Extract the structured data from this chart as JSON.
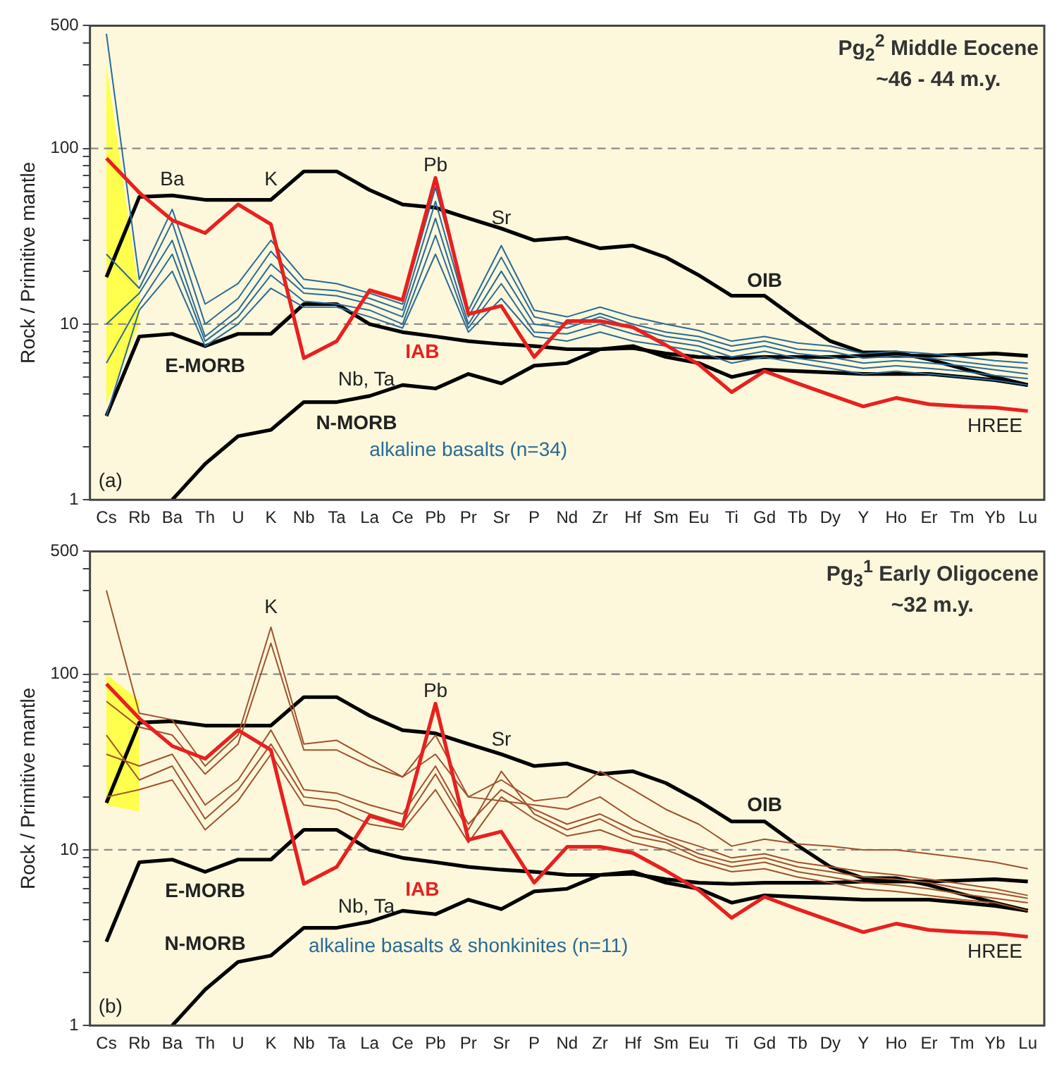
{
  "chart_data": [
    {
      "type": "line",
      "title": "Pg$_{2}$$^{2}$ Middle Eocene",
      "subtitle": "~46 - 44 m.y.",
      "ylabel": "Rock / Primitive mantle",
      "log": true,
      "marker": "none",
      "line_style": "solid",
      "categories": [
        "Cs",
        "Rb",
        "Ba",
        "Th",
        "U",
        "K",
        "Nb",
        "Ta",
        "La",
        "Ce",
        "Pb",
        "Pr",
        "Sr",
        "P",
        "Nd",
        "Zr",
        "Hf",
        "Sm",
        "Eu",
        "Ti",
        "Gd",
        "Tb",
        "Dy",
        "Y",
        "Ho",
        "Er",
        "Tm",
        "Yb",
        "Lu"
      ],
      "ylim": [
        1,
        500
      ],
      "yticks": [
        1,
        {
          "value": 2,
          "label": null
        },
        {
          "value": 3,
          "label": null
        },
        {
          "value": 4,
          "label": null
        },
        {
          "value": 5,
          "label": null
        },
        {
          "value": 6,
          "label": null
        },
        {
          "value": 7,
          "label": null
        },
        {
          "value": 8,
          "label": null
        },
        {
          "value": 9,
          "label": null
        },
        10,
        {
          "value": 20,
          "label": null
        },
        {
          "value": 30,
          "label": null
        },
        {
          "value": 40,
          "label": null
        },
        {
          "value": 50,
          "label": null
        },
        {
          "value": 60,
          "label": null
        },
        {
          "value": 70,
          "label": null
        },
        {
          "value": 80,
          "label": null
        },
        {
          "value": 90,
          "label": null
        },
        100,
        {
          "value": 200,
          "label": null
        },
        {
          "value": 300,
          "label": null
        },
        {
          "value": 400,
          "label": null
        },
        500
      ],
      "ref_lines": [
        {
          "axis": "y",
          "value": 10,
          "color": "#8c8c8c",
          "line_style": "dashed"
        },
        {
          "axis": "y",
          "value": 100,
          "color": "#8c8c8c",
          "line_style": "dashed"
        }
      ],
      "series": [
        {
          "type": "area",
          "color": "#ffff4d",
          "values": [
            null,
            null,
            null,
            null,
            null,
            null,
            null,
            null,
            null,
            null,
            null,
            null,
            null,
            null,
            null,
            null,
            null,
            null,
            null,
            null,
            null,
            null,
            null,
            null,
            null,
            null,
            null,
            null,
            null
          ],
          "lower": [
            3.5,
            10,
            null,
            null,
            null,
            null,
            null,
            null,
            null,
            null,
            null,
            null,
            null,
            null,
            null,
            null,
            null,
            null,
            null,
            null,
            null,
            null,
            null,
            null,
            null,
            null,
            null,
            null,
            null
          ],
          "upper": [
            300,
            15,
            null,
            null,
            null,
            null,
            null,
            null,
            null,
            null,
            null,
            null,
            null,
            null,
            null,
            null,
            null,
            null,
            null,
            null,
            null,
            null,
            null,
            null,
            null,
            null,
            null,
            null,
            null
          ]
        },
        {
          "color": "#000000",
          "values": [
            18.5,
            53,
            54,
            51,
            51,
            51,
            74,
            74,
            58,
            48,
            46,
            40,
            35,
            30,
            31,
            27,
            28,
            24,
            19,
            14.5,
            14.5,
            10.6,
            8,
            6.9,
            6.9,
            6.3,
            5.6,
            5,
            4.5
          ]
        },
        {
          "color": "#000000",
          "values": [
            3,
            8.5,
            8.8,
            7.5,
            8.8,
            8.8,
            13,
            13,
            10,
            9,
            8.5,
            8,
            7.7,
            7.5,
            7.2,
            7.2,
            7.5,
            6.5,
            6,
            5,
            5.5,
            5.4,
            5.3,
            5.2,
            5.2,
            5.2,
            5,
            4.8,
            4.5
          ]
        },
        {
          "color": "#000000",
          "values": [
            null,
            null,
            1,
            1.6,
            2.3,
            2.5,
            3.6,
            3.6,
            3.9,
            4.5,
            4.3,
            5.2,
            4.6,
            5.8,
            6,
            7.2,
            7.3,
            6.8,
            6.5,
            6.4,
            6.5,
            6.5,
            6.5,
            6.6,
            6.6,
            6.6,
            6.7,
            6.8,
            6.6
          ]
        },
        {
          "color": "#2a6a94",
          "values": [
            450,
            18,
            45,
            13,
            17,
            30,
            18,
            17,
            15,
            13,
            60,
            12,
            28,
            12,
            11,
            12.5,
            11,
            10,
            9.2,
            8,
            8.5,
            7.8,
            7.5,
            6.8,
            7,
            6.8,
            6.5,
            6.2,
            6
          ]
        },
        {
          "color": "#2a6a94",
          "values": [
            10,
            15,
            30,
            8.5,
            12,
            22,
            15,
            14.5,
            13,
            11,
            40,
            10,
            20,
            10,
            9.5,
            11,
            9.5,
            8.5,
            8,
            7,
            7.5,
            6.8,
            6.5,
            6,
            6.2,
            6,
            5.8,
            5.5,
            5.2
          ]
        },
        {
          "color": "#2a6a94",
          "values": [
            3,
            12,
            20,
            7.5,
            10,
            16,
            12.5,
            12.5,
            11,
            9.5,
            25,
            9,
            14,
            8.5,
            8,
            9,
            8,
            7.5,
            7,
            6,
            6.5,
            6,
            5.6,
            5.2,
            5.4,
            5.2,
            5,
            4.8,
            4.5
          ]
        },
        {
          "color": "#2a6a94",
          "values": [
            25,
            16,
            38,
            10,
            14,
            26,
            16,
            15.5,
            14,
            12,
            50,
            11,
            24,
            11,
            10,
            11.5,
            10,
            9,
            8.5,
            7.5,
            8,
            7.2,
            7,
            6.4,
            6.6,
            6.4,
            6.1,
            5.8,
            5.6
          ]
        },
        {
          "color": "#2a6a94",
          "values": [
            6,
            13,
            25,
            8,
            11,
            19,
            13.5,
            13,
            12,
            10,
            32,
            9.5,
            17,
            9,
            8.8,
            10,
            8.8,
            8,
            7.5,
            6.5,
            7,
            6.4,
            6,
            5.6,
            5.8,
            5.6,
            5.4,
            5.1,
            4.9
          ]
        },
        {
          "color": "#e8201f",
          "values": [
            88,
            56,
            39,
            33,
            48,
            37,
            6.4,
            8,
            15.6,
            13.7,
            68,
            11.4,
            12.7,
            6.5,
            10.4,
            10.4,
            9.6,
            7.6,
            5.9,
            4.1,
            5.4,
            4.6,
            3.95,
            3.4,
            3.8,
            3.5,
            3.4,
            3.35,
            3.2
          ]
        }
      ],
      "annotations": [
        "Ba",
        "K",
        "Pb",
        "Sr",
        "Nb, Ta",
        "IAB",
        "E-MORB",
        "N-MORB",
        "OIB",
        "HREE",
        "alkaline basalts (n=34)",
        "(a)"
      ]
    },
    {
      "type": "line",
      "title": "Pg$_{3}$$^{1}$ Early Oligocene",
      "subtitle": "~32 m.y.",
      "ylabel": "Rock / Primitive mantle",
      "log": true,
      "marker": "none",
      "line_style": "solid",
      "categories": [
        "Cs",
        "Rb",
        "Ba",
        "Th",
        "U",
        "K",
        "Nb",
        "Ta",
        "La",
        "Ce",
        "Pb",
        "Pr",
        "Sr",
        "P",
        "Nd",
        "Zr",
        "Hf",
        "Sm",
        "Eu",
        "Ti",
        "Gd",
        "Tb",
        "Dy",
        "Y",
        "Ho",
        "Er",
        "Tm",
        "Yb",
        "Lu"
      ],
      "ylim": [
        1,
        500
      ],
      "yticks": [
        1,
        {
          "value": 2,
          "label": null
        },
        {
          "value": 3,
          "label": null
        },
        {
          "value": 4,
          "label": null
        },
        {
          "value": 5,
          "label": null
        },
        {
          "value": 6,
          "label": null
        },
        {
          "value": 7,
          "label": null
        },
        {
          "value": 8,
          "label": null
        },
        {
          "value": 9,
          "label": null
        },
        10,
        {
          "value": 20,
          "label": null
        },
        {
          "value": 30,
          "label": null
        },
        {
          "value": 40,
          "label": null
        },
        {
          "value": 50,
          "label": null
        },
        {
          "value": 60,
          "label": null
        },
        {
          "value": 70,
          "label": null
        },
        {
          "value": 80,
          "label": null
        },
        {
          "value": 90,
          "label": null
        },
        100,
        {
          "value": 200,
          "label": null
        },
        {
          "value": 300,
          "label": null
        },
        {
          "value": 400,
          "label": null
        },
        500
      ],
      "ref_lines": [
        {
          "axis": "y",
          "value": 10,
          "color": "#8c8c8c",
          "line_style": "dashed"
        },
        {
          "axis": "y",
          "value": 100,
          "color": "#8c8c8c",
          "line_style": "dashed"
        }
      ],
      "series": [
        {
          "type": "area",
          "color": "#ffff4d",
          "values": [
            null,
            null,
            null,
            null,
            null,
            null,
            null,
            null,
            null,
            null,
            null,
            null,
            null,
            null,
            null,
            null,
            null,
            null,
            null,
            null,
            null,
            null,
            null,
            null,
            null,
            null,
            null,
            null,
            null
          ],
          "lower": [
            18,
            16.5,
            null,
            null,
            null,
            null,
            null,
            null,
            null,
            null,
            null,
            null,
            null,
            null,
            null,
            null,
            null,
            null,
            null,
            null,
            null,
            null,
            null,
            null,
            null,
            null,
            null,
            null,
            null
          ],
          "upper": [
            100,
            71,
            null,
            null,
            null,
            null,
            null,
            null,
            null,
            null,
            null,
            null,
            null,
            null,
            null,
            null,
            null,
            null,
            null,
            null,
            null,
            null,
            null,
            null,
            null,
            null,
            null,
            null,
            null
          ]
        },
        {
          "color": "#000000",
          "values": [
            18.5,
            53,
            54,
            51,
            51,
            51,
            74,
            74,
            58,
            48,
            46,
            40,
            35,
            30,
            31,
            27,
            28,
            24,
            19,
            14.5,
            14.5,
            10.6,
            8,
            6.9,
            6.9,
            6.3,
            5.6,
            5,
            4.5
          ]
        },
        {
          "color": "#000000",
          "values": [
            3,
            8.5,
            8.8,
            7.5,
            8.8,
            8.8,
            13,
            13,
            10,
            9,
            8.5,
            8,
            7.7,
            7.5,
            7.2,
            7.2,
            7.5,
            6.5,
            6,
            5,
            5.5,
            5.4,
            5.3,
            5.2,
            5.2,
            5.2,
            5,
            4.8,
            4.5
          ]
        },
        {
          "color": "#000000",
          "values": [
            null,
            null,
            1,
            1.6,
            2.3,
            2.5,
            3.6,
            3.6,
            3.9,
            4.5,
            4.3,
            5.2,
            4.6,
            5.8,
            6,
            7.2,
            7.3,
            6.8,
            6.5,
            6.4,
            6.5,
            6.5,
            6.5,
            6.6,
            6.6,
            6.6,
            6.7,
            6.8,
            6.6
          ]
        },
        {
          "color": "#a0522d",
          "values": [
            300,
            60,
            55,
            30,
            45,
            185,
            40,
            42,
            33,
            26,
            45,
            20,
            25,
            19,
            20,
            28,
            22,
            17,
            14,
            10.5,
            11.5,
            10.8,
            10.5,
            10,
            10,
            9.5,
            9,
            8.5,
            7.8
          ]
        },
        {
          "color": "#a0522d",
          "values": [
            70,
            50,
            45,
            27,
            40,
            150,
            37,
            37,
            30,
            26,
            35,
            20,
            19,
            18,
            17,
            20,
            15,
            12,
            10.5,
            9,
            9.5,
            8.5,
            8,
            7.5,
            7.2,
            6.8,
            6.4,
            6,
            5.5
          ]
        },
        {
          "color": "#a0522d",
          "values": [
            20,
            22,
            25,
            13,
            19,
            35,
            18,
            17,
            14,
            13,
            22,
            11,
            20,
            15,
            12,
            13,
            11,
            10,
            8.5,
            7.5,
            7.8,
            7,
            6.5,
            6,
            5.8,
            5.5,
            5.2,
            5,
            4.5
          ]
        },
        {
          "color": "#a0522d",
          "values": [
            45,
            25,
            30,
            15,
            22,
            40,
            20,
            19,
            16,
            14,
            27,
            13,
            28,
            16,
            13,
            15,
            12,
            11,
            9,
            8,
            8.5,
            7.5,
            7,
            6.5,
            6.3,
            6,
            5.6,
            5.3,
            5
          ]
        },
        {
          "color": "#a0522d",
          "values": [
            35,
            30,
            35,
            18,
            25,
            48,
            22,
            21,
            18,
            16,
            30,
            14,
            22,
            17,
            14,
            16,
            13,
            11.5,
            9.5,
            8.5,
            9,
            8,
            7.5,
            7,
            6.8,
            6.5,
            6,
            5.7,
            5.3
          ]
        },
        {
          "color": "#e8201f",
          "values": [
            88,
            56,
            39,
            33,
            48,
            37,
            6.4,
            8,
            15.6,
            13.7,
            68,
            11.4,
            12.7,
            6.5,
            10.4,
            10.4,
            9.6,
            7.6,
            5.9,
            4.1,
            5.4,
            4.6,
            3.95,
            3.4,
            3.8,
            3.5,
            3.4,
            3.35,
            3.2
          ]
        }
      ],
      "annotations": [
        "K",
        "Pb",
        "Sr",
        "Nb, Ta",
        "IAB",
        "E-MORB",
        "N-MORB",
        "OIB",
        "HREE",
        "alkaline basalts & shonkinites (n=11)",
        "(b)"
      ]
    }
  ]
}
